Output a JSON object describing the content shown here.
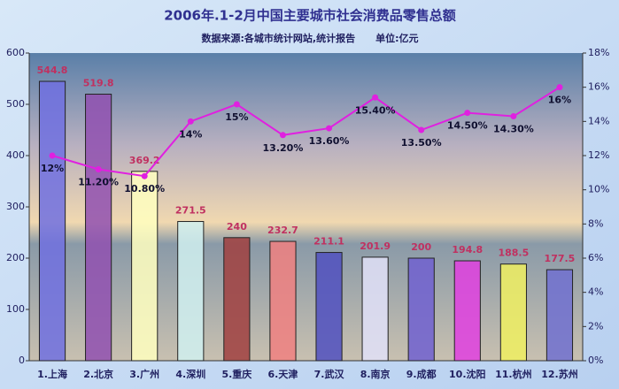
{
  "chart_data": {
    "type": "bar-line",
    "title": "2006年.1-2月中国主要城市社会消费品零售总额",
    "subtitle": "数据来源:各城市统计网站,统计报告      单位:亿元",
    "categories": [
      "1.上海",
      "2.北京",
      "3.广州",
      "4.深圳",
      "5.重庆",
      "6.天津",
      "7.武汉",
      "8.南京",
      "9.成都",
      "10.沈阳",
      "11.杭州",
      "12.苏州"
    ],
    "series": [
      {
        "type": "bar",
        "values": [
          544.8,
          519.8,
          369.2,
          271.5,
          240,
          232.7,
          211.1,
          201.9,
          200,
          194.8,
          188.5,
          177.5
        ],
        "colors": [
          "#7070e0",
          "#9050b0",
          "#ffffc0",
          "#d0f0f0",
          "#a04040",
          "#f08080",
          "#5050c0",
          "#e0e0f8",
          "#7060d0",
          "#e040e0",
          "#f0f060",
          "#7070d0"
        ]
      },
      {
        "type": "line",
        "axis": "y2",
        "color": "#e020e0",
        "values": [
          12,
          11.2,
          10.8,
          14,
          15,
          13.2,
          13.6,
          15.4,
          13.5,
          14.5,
          14.3,
          16
        ],
        "value_labels": [
          "12%",
          "11.20%",
          "10.80%",
          "14%",
          "15%",
          "13.20%",
          "13.60%",
          "15.40%",
          "13.50%",
          "14.50%",
          "14.30%",
          "16%"
        ]
      }
    ],
    "ylim": [
      0,
      600
    ],
    "yticks": [
      0,
      100,
      200,
      300,
      400,
      500,
      600
    ],
    "y2lim": [
      0,
      18
    ],
    "y2ticks": [
      {
        "value": 0,
        "label": "0%"
      },
      {
        "value": 2,
        "label": "2%"
      },
      {
        "value": 4,
        "label": "4%"
      },
      {
        "value": 6,
        "label": "6%"
      },
      {
        "value": 8,
        "label": "8%"
      },
      {
        "value": 10,
        "label": "10%"
      },
      {
        "value": 12,
        "label": "12%"
      },
      {
        "value": 14,
        "label": "14%"
      },
      {
        "value": 16,
        "label": "16%"
      },
      {
        "value": 18,
        "label": "18%"
      }
    ]
  }
}
